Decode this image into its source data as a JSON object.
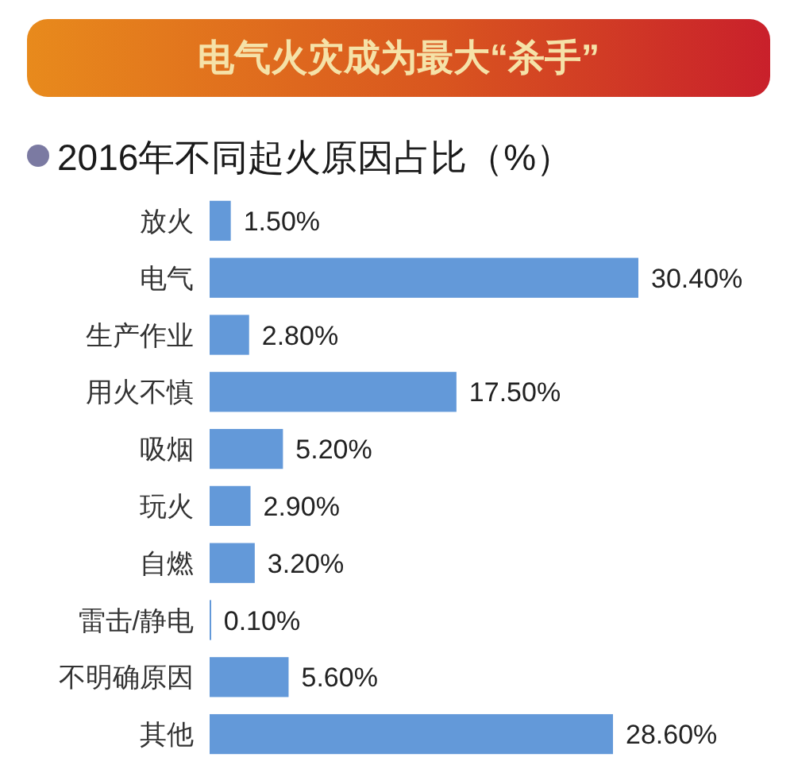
{
  "chart_data": {
    "type": "bar",
    "orientation": "horizontal",
    "title": "电气火灾成为最大“杀手”",
    "subtitle": "2016年不同起火原因占比（%）",
    "categories": [
      "放火",
      "电气",
      "生产作业",
      "用火不慎",
      "吸烟",
      "玩火",
      "自燃",
      "雷击/静电",
      "不明确原因",
      "其他"
    ],
    "values": [
      1.5,
      30.4,
      2.8,
      17.5,
      5.2,
      2.9,
      3.2,
      0.1,
      5.6,
      28.6
    ],
    "value_labels": [
      "1.50%",
      "30.40%",
      "2.80%",
      "17.50%",
      "5.20%",
      "2.90%",
      "3.20%",
      "0.10%",
      "5.60%",
      "28.60%"
    ],
    "color": "#6399d9",
    "tick_labels": "y"
  }
}
